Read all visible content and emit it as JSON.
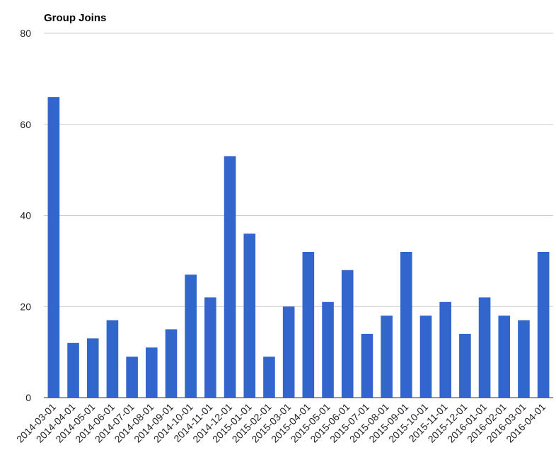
{
  "chart_data": {
    "type": "bar",
    "title": "Group Joins",
    "xlabel": "",
    "ylabel": "",
    "ylim": [
      0,
      80
    ],
    "yticks": [
      "0",
      "20",
      "40",
      "60",
      "80"
    ],
    "grid": true,
    "legend": "none",
    "bar_color": "#3366cc",
    "gridline_color": "#cccccc",
    "axis_color": "#333333",
    "categories": [
      "2014-03-01",
      "2014-04-01",
      "2014-05-01",
      "2014-06-01",
      "2014-07-01",
      "2014-08-01",
      "2014-09-01",
      "2014-10-01",
      "2014-11-01",
      "2014-12-01",
      "2015-01-01",
      "2015-02-01",
      "2015-03-01",
      "2015-04-01",
      "2015-05-01",
      "2015-06-01",
      "2015-07-01",
      "2015-08-01",
      "2015-09-01",
      "2015-10-01",
      "2015-11-01",
      "2015-12-01",
      "2016-01-01",
      "2016-02-01",
      "2016-03-01",
      "2016-04-01"
    ],
    "values": [
      66,
      12,
      13,
      17,
      9,
      11,
      15,
      27,
      22,
      53,
      36,
      9,
      20,
      32,
      21,
      28,
      14,
      18,
      32,
      18,
      21,
      14,
      22,
      18,
      17,
      32
    ]
  }
}
